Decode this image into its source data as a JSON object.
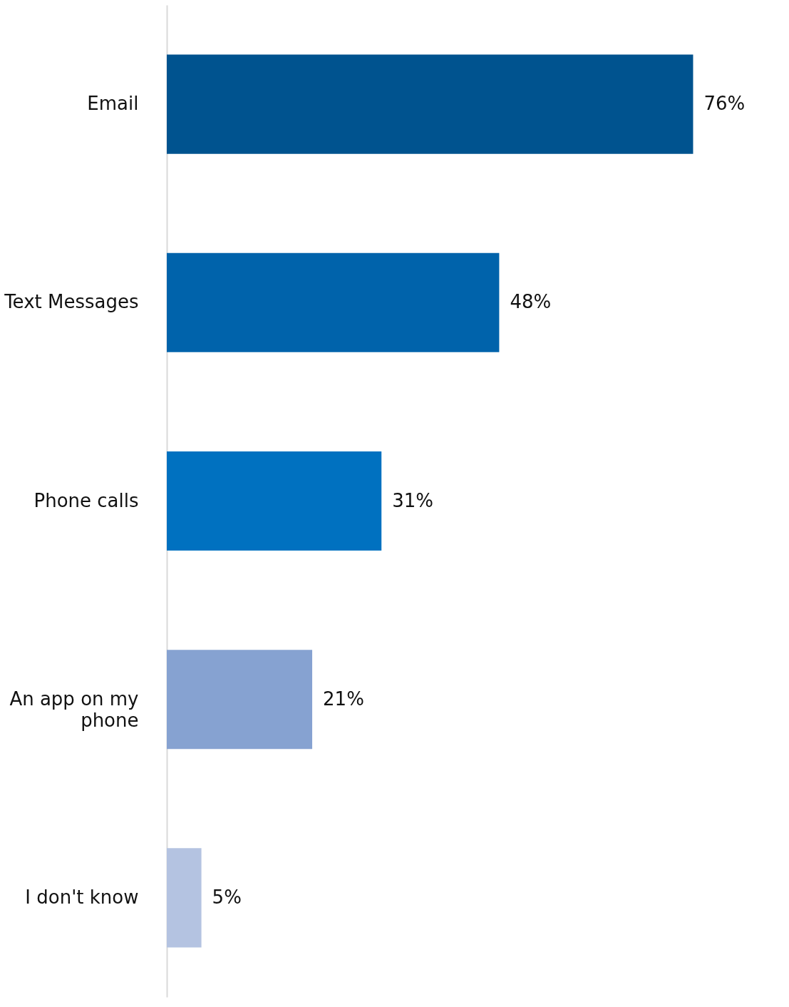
{
  "chart_data": {
    "type": "bar",
    "orientation": "horizontal",
    "categories": [
      "Email",
      "Text Messages",
      "Phone calls",
      "An app on my phone",
      "I don't know"
    ],
    "values": [
      76,
      48,
      31,
      21,
      5
    ],
    "colors": [
      "#00538f",
      "#0063ab",
      "#0071c0",
      "#86a2d1",
      "#b4c3e1"
    ],
    "value_labels": [
      "76%",
      "48%",
      "31%",
      "21%",
      "5%"
    ],
    "legend": false
  }
}
